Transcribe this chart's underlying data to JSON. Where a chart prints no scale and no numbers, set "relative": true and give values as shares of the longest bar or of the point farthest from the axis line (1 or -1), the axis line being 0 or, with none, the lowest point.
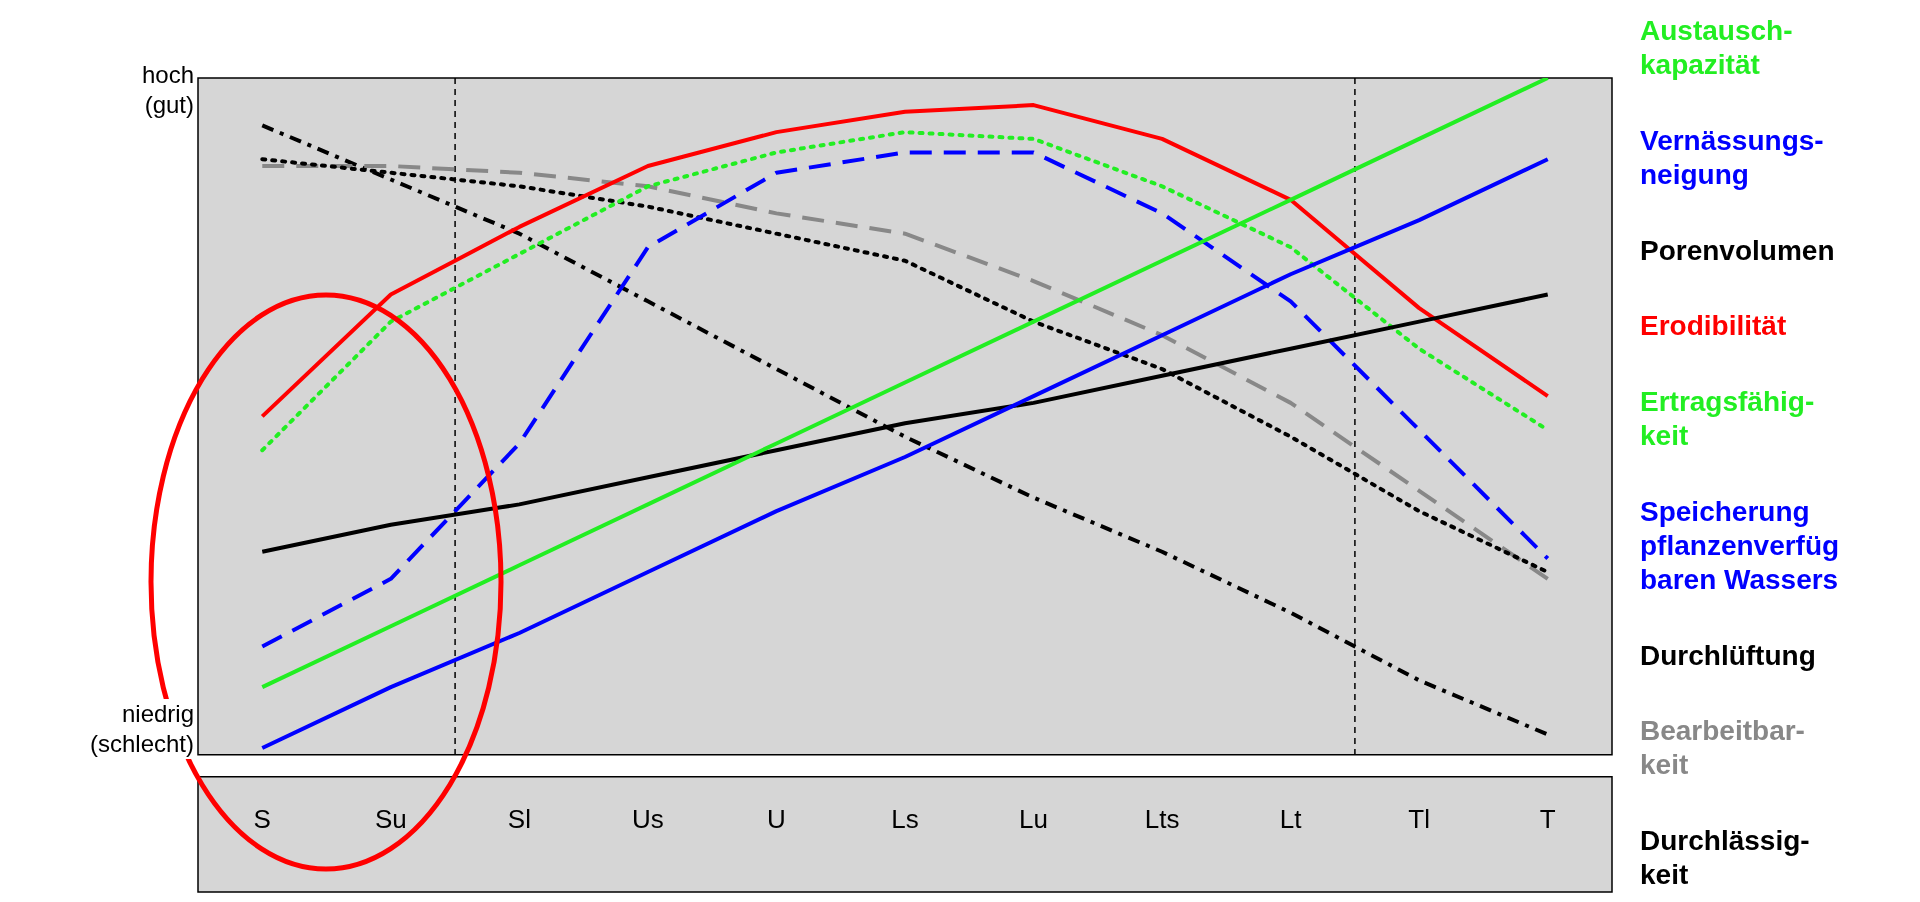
{
  "chart_data": {
    "type": "line",
    "relative": true,
    "legend": false,
    "grid": false,
    "marker": "none",
    "categories": [
      "S",
      "Su",
      "Sl",
      "Us",
      "U",
      "Ls",
      "Lu",
      "Lts",
      "Lt",
      "Tl",
      "T"
    ],
    "annotations": [
      "hoch\n(gut)",
      "niedrig\n(schlecht)"
    ],
    "series": [
      {
        "name": "Austausch-\nkapazität",
        "color": "#22ee22",
        "line_style": "solid",
        "values": [
          0.1,
          0.19,
          0.28,
          0.37,
          0.46,
          0.55,
          0.64,
          0.73,
          0.82,
          0.91,
          1
        ]
      },
      {
        "name": "Vernässungs-\nneigung",
        "color": "#0000ff",
        "line_style": "solid",
        "values": [
          0.01,
          0.1,
          0.18,
          0.27,
          0.36,
          0.44,
          0.53,
          0.62,
          0.71,
          0.79,
          0.88
        ]
      },
      {
        "name": "Porenvolumen",
        "color": "#000000",
        "line_style": "solid",
        "values": [
          0.3,
          0.34,
          0.37,
          0.41,
          0.45,
          0.49,
          0.52,
          0.56,
          0.6,
          0.64,
          0.68
        ]
      },
      {
        "name": "Erodibilität",
        "color": "#ff0000",
        "line_style": "solid",
        "values": [
          0.5,
          0.68,
          0.78,
          0.87,
          0.92,
          0.95,
          0.96,
          0.91,
          0.82,
          0.66,
          0.53
        ]
      },
      {
        "name": "Ertragsfähig-\nkeit",
        "color": "#22ee22",
        "line_style": "dotted",
        "values": [
          0.45,
          0.64,
          0.74,
          0.84,
          0.89,
          0.92,
          0.91,
          0.84,
          0.75,
          0.6,
          0.48
        ]
      },
      {
        "name": "Speicherung\npflanzenverfüg\nbaren Wassers",
        "color": "#0000ff",
        "line_style": "dashed",
        "values": [
          0.16,
          0.26,
          0.46,
          0.75,
          0.86,
          0.89,
          0.89,
          0.8,
          0.67,
          0.48,
          0.29
        ]
      },
      {
        "name": "Durchlüftung",
        "color": "#000000",
        "line_style": "dotted",
        "values": [
          0.88,
          0.86,
          0.84,
          0.81,
          0.77,
          0.73,
          0.64,
          0.57,
          0.47,
          0.36,
          0.27
        ]
      },
      {
        "name": "Bearbeitbar-\nkeit",
        "color": "#888888",
        "line_style": "dashed",
        "values": [
          0.87,
          0.87,
          0.86,
          0.84,
          0.8,
          0.77,
          0.7,
          0.62,
          0.52,
          0.39,
          0.26
        ]
      },
      {
        "name": "Durchlässig-\nkeit",
        "color": "#000000",
        "line_style": "dashdot",
        "values": [
          0.93,
          0.85,
          0.77,
          0.67,
          0.57,
          0.47,
          0.38,
          0.3,
          0.21,
          0.11,
          0.03
        ]
      }
    ]
  }
}
